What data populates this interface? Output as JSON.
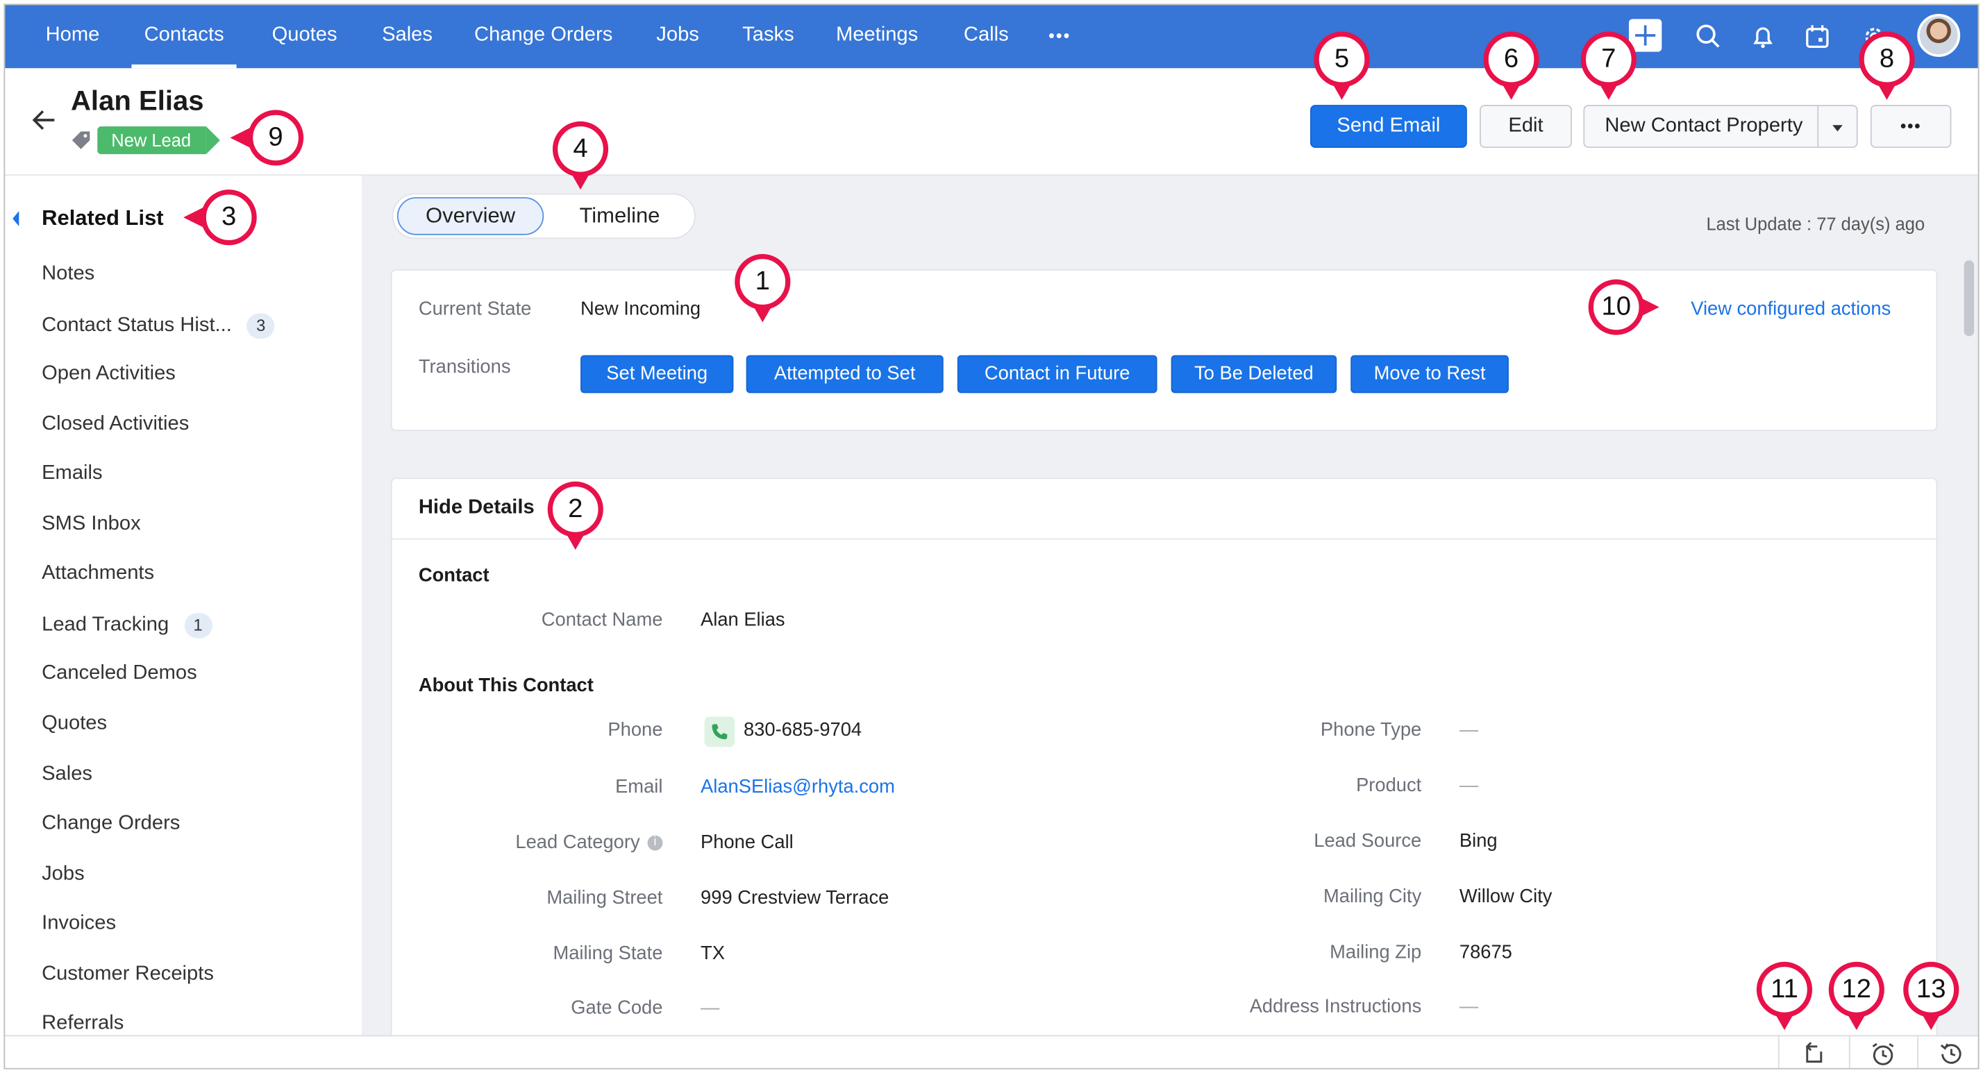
{
  "nav": {
    "items": [
      "Home",
      "Contacts",
      "Quotes",
      "Sales",
      "Change Orders",
      "Jobs",
      "Tasks",
      "Meetings",
      "Calls"
    ],
    "more": "•••",
    "active": "Contacts"
  },
  "header": {
    "title": "Alan Elias",
    "status_badge": "New Lead",
    "send_email": "Send Email",
    "edit": "Edit",
    "new_property": "New Contact Property",
    "more": "•••"
  },
  "sidebar": {
    "heading": "Related List",
    "items": [
      {
        "label": "Notes"
      },
      {
        "label": "Contact Status Hist...",
        "count": "3"
      },
      {
        "label": "Open Activities"
      },
      {
        "label": "Closed Activities"
      },
      {
        "label": "Emails"
      },
      {
        "label": "SMS Inbox"
      },
      {
        "label": "Attachments"
      },
      {
        "label": "Lead Tracking",
        "count": "1"
      },
      {
        "label": "Canceled Demos"
      },
      {
        "label": "Quotes"
      },
      {
        "label": "Sales"
      },
      {
        "label": "Change Orders"
      },
      {
        "label": "Jobs"
      },
      {
        "label": "Invoices"
      },
      {
        "label": "Customer Receipts"
      },
      {
        "label": "Referrals"
      }
    ]
  },
  "tabs": {
    "overview": "Overview",
    "timeline": "Timeline"
  },
  "last_update": "Last Update : 77 day(s) ago",
  "state": {
    "current_state_label": "Current State",
    "current_state_value": "New Incoming",
    "transitions_label": "Transitions",
    "transitions": [
      "Set Meeting",
      "Attempted to Set",
      "Contact in Future",
      "To Be Deleted",
      "Move to Rest"
    ],
    "view_actions": "View configured actions"
  },
  "details": {
    "hide_details": "Hide Details",
    "contact_section": "Contact",
    "contact_name_label": "Contact Name",
    "contact_name_value": "Alan Elias",
    "about_section": "About This Contact",
    "phone_label": "Phone",
    "phone_value": "830-685-9704",
    "email_label": "Email",
    "email_value": "AlanSElias@rhyta.com",
    "lead_category_label": "Lead Category",
    "lead_category_value": "Phone Call",
    "mailing_street_label": "Mailing Street",
    "mailing_street_value": "999 Crestview Terrace",
    "mailing_state_label": "Mailing State",
    "mailing_state_value": "TX",
    "gate_code_label": "Gate Code",
    "gate_code_value": "—",
    "phone_type_label": "Phone Type",
    "phone_type_value": "—",
    "product_label": "Product",
    "product_value": "—",
    "lead_source_label": "Lead Source",
    "lead_source_value": "Bing",
    "mailing_city_label": "Mailing City",
    "mailing_city_value": "Willow City",
    "mailing_zip_label": "Mailing Zip",
    "mailing_zip_value": "78675",
    "address_instructions_label": "Address Instructions",
    "address_instructions_value": "—"
  },
  "callouts": [
    "1",
    "2",
    "3",
    "4",
    "5",
    "6",
    "7",
    "8",
    "9",
    "10",
    "11",
    "12",
    "13"
  ],
  "colors": {
    "nav": "#3775d6",
    "primary": "#1a73e8",
    "callout": "#e8114a",
    "badge": "#4cba6b"
  }
}
